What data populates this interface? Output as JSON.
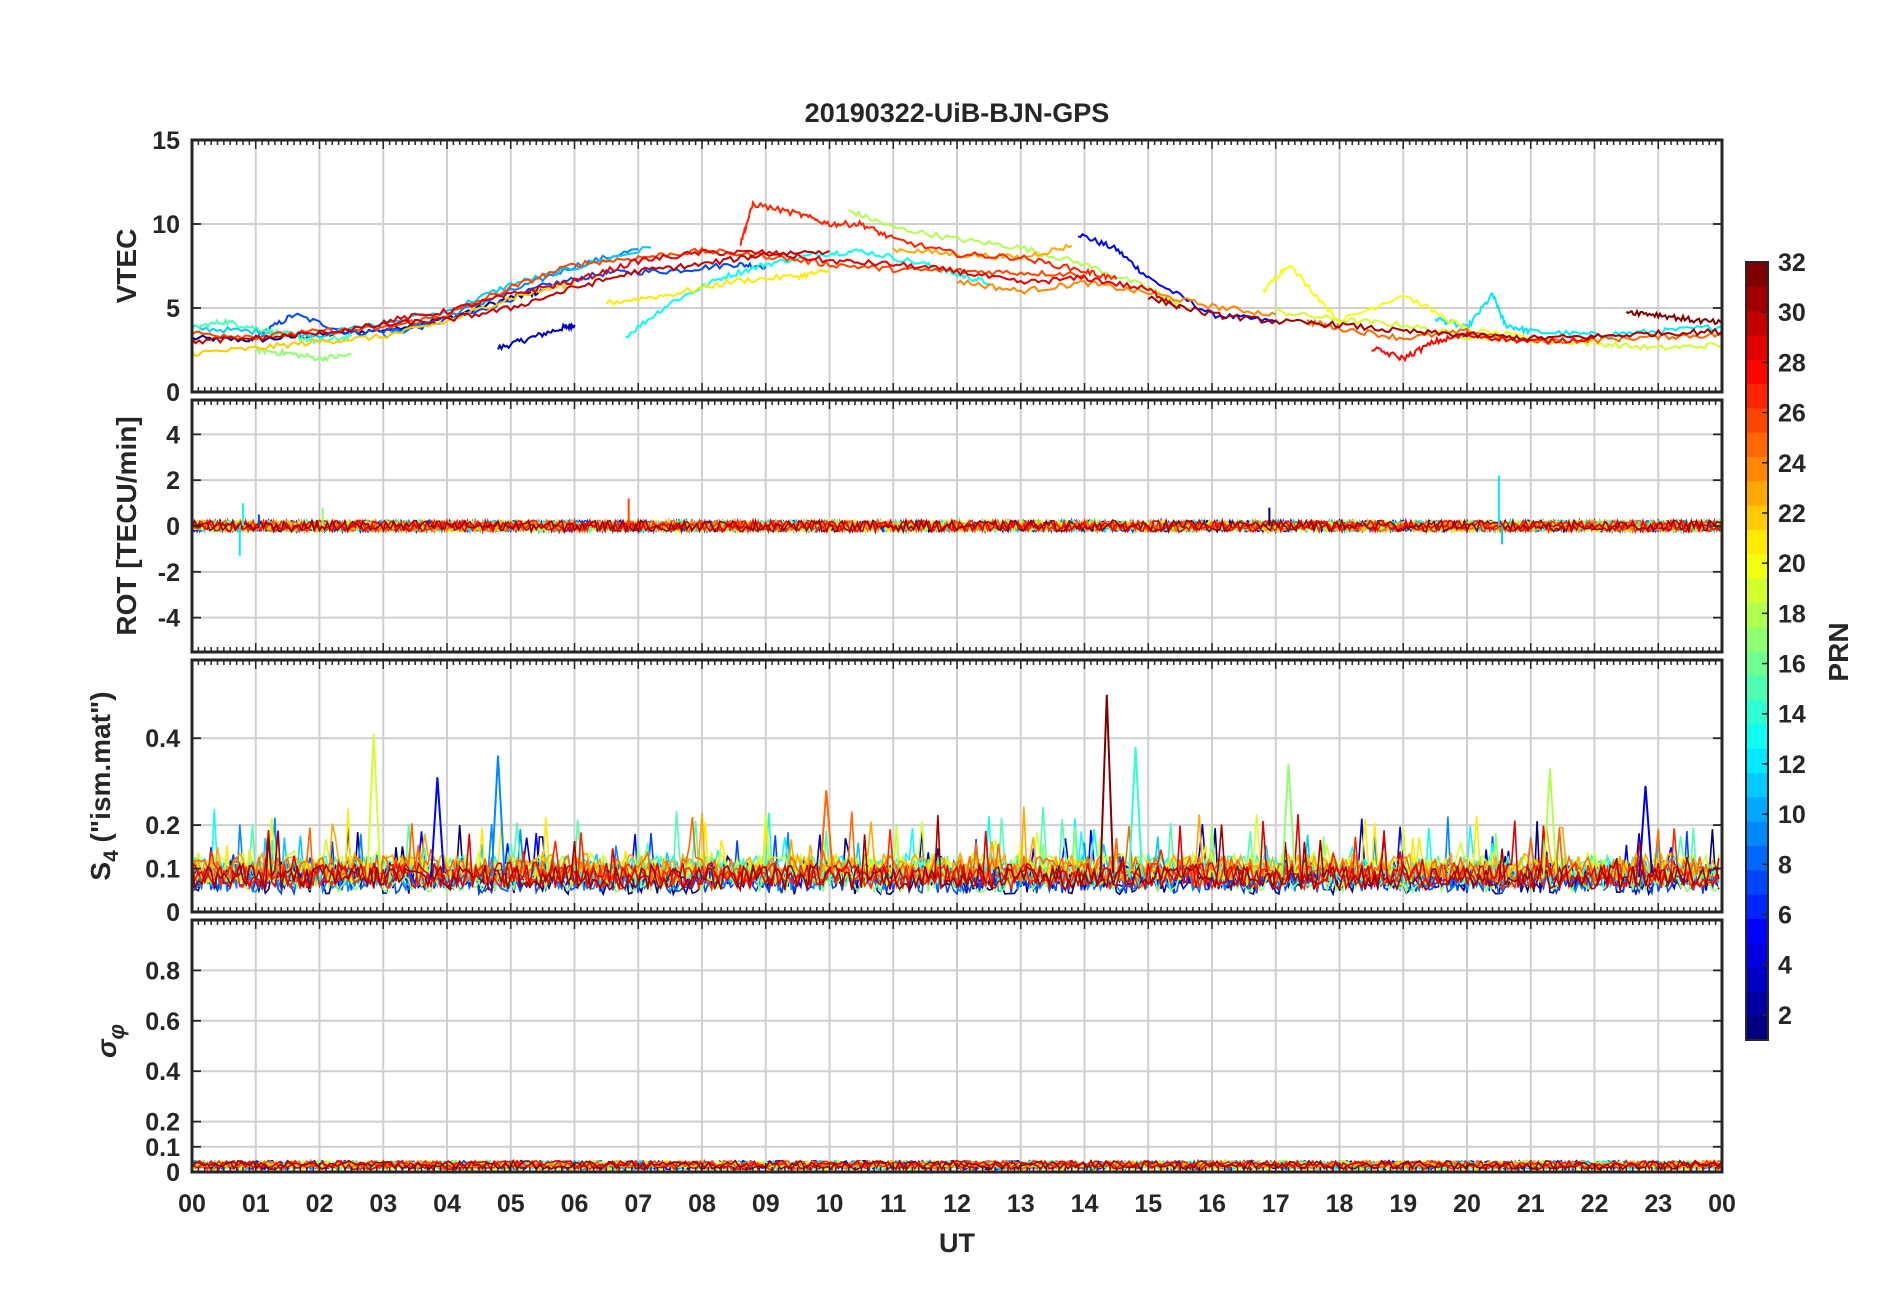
{
  "figure": {
    "title": "20190322-UiB-BJN-GPS",
    "xlabel": "UT",
    "x_tick_labels": [
      "00",
      "01",
      "02",
      "03",
      "04",
      "05",
      "06",
      "07",
      "08",
      "09",
      "10",
      "11",
      "12",
      "13",
      "14",
      "15",
      "16",
      "17",
      "18",
      "19",
      "20",
      "21",
      "22",
      "23",
      "00"
    ]
  },
  "colorbar": {
    "label": "PRN",
    "range": [
      1,
      32
    ],
    "tick_labels": [
      "2",
      "4",
      "6",
      "8",
      "10",
      "12",
      "14",
      "16",
      "18",
      "20",
      "22",
      "24",
      "26",
      "28",
      "30",
      "32"
    ],
    "colormap": "jet"
  },
  "chart_data": [
    {
      "type": "line",
      "panel": "vtec",
      "ylabel": "VTEC",
      "ylim": [
        0,
        15
      ],
      "yticks": [
        0,
        5,
        10,
        15
      ],
      "xlim": [
        0,
        24
      ],
      "grid": true,
      "series_note": "one line per GPS PRN, colored by PRN",
      "series": [
        {
          "prn": 1,
          "x": [
            0.0,
            1.0,
            2.0,
            3.0,
            4.0,
            5.0,
            5.5
          ],
          "y": [
            3.2,
            3.1,
            3.4,
            3.7,
            4.4,
            5.6,
            6.0
          ]
        },
        {
          "prn": 3,
          "x": [
            4.8,
            5.3,
            5.8,
            6.0
          ],
          "y": [
            2.6,
            3.2,
            3.8,
            4.0
          ]
        },
        {
          "prn": 5,
          "x": [
            13.9,
            14.5,
            15.0,
            16.0,
            17.0
          ],
          "y": [
            9.4,
            8.5,
            6.8,
            4.6,
            4.2
          ]
        },
        {
          "prn": 7,
          "x": [
            1.0,
            1.6,
            2.5,
            3.5,
            4.5,
            5.5,
            6.5,
            7.5,
            8.5,
            9.0
          ],
          "y": [
            3.3,
            4.6,
            3.5,
            3.8,
            4.8,
            6.3,
            7.1,
            7.2,
            7.6,
            7.5
          ]
        },
        {
          "prn": 9,
          "x": [
            3.0,
            4.0,
            5.0,
            6.0,
            7.0
          ],
          "y": [
            3.3,
            4.5,
            6.0,
            7.5,
            8.5
          ]
        },
        {
          "prn": 11,
          "x": [
            0.0,
            1.0,
            2.0,
            4.0,
            5.0,
            6.0,
            7.2
          ],
          "y": [
            3.8,
            3.6,
            3.4,
            4.8,
            6.4,
            7.4,
            8.6
          ]
        },
        {
          "prn": 12,
          "x": [
            19.5,
            20.0,
            20.4,
            20.6,
            21.0,
            22.0,
            23.0,
            24.0
          ],
          "y": [
            4.4,
            3.8,
            5.8,
            4.0,
            3.6,
            3.4,
            3.6,
            3.9
          ]
        },
        {
          "prn": 13,
          "x": [
            6.8,
            7.5,
            8.3,
            9.0,
            9.8,
            10.5,
            11.5,
            12.0,
            12.5
          ],
          "y": [
            3.3,
            5.3,
            6.8,
            7.6,
            8.2,
            8.4,
            7.6,
            7.0,
            6.5
          ]
        },
        {
          "prn": 15,
          "x": [
            0.0,
            0.5,
            1.0,
            1.5,
            2.0,
            2.5
          ],
          "y": [
            3.8,
            4.2,
            3.8,
            3.4,
            3.0,
            3.3
          ]
        },
        {
          "prn": 17,
          "x": [
            1.0,
            1.5,
            2.0,
            2.5
          ],
          "y": [
            2.5,
            2.3,
            2.0,
            2.2
          ]
        },
        {
          "prn": 18,
          "x": [
            10.3,
            11.0,
            12.0,
            13.0,
            14.0,
            15.0,
            15.5
          ],
          "y": [
            10.8,
            9.8,
            9.1,
            8.6,
            7.6,
            6.2,
            5.2
          ]
        },
        {
          "prn": 19,
          "x": [
            17.0,
            18.0,
            19.0,
            20.0,
            21.0,
            22.0,
            23.0,
            24.0
          ],
          "y": [
            4.8,
            4.3,
            4.0,
            3.3,
            3.1,
            2.9,
            2.6,
            2.8
          ]
        },
        {
          "prn": 20,
          "x": [
            16.8,
            17.2,
            18.0,
            19.0,
            20.0,
            21.0
          ],
          "y": [
            6.0,
            7.6,
            4.2,
            5.8,
            3.7,
            3.2
          ]
        },
        {
          "prn": 21,
          "x": [
            6.5,
            7.5,
            8.5,
            9.5,
            10.0
          ],
          "y": [
            5.3,
            5.8,
            6.6,
            6.9,
            7.2
          ]
        },
        {
          "prn": 22,
          "x": [
            0.0,
            1.0,
            2.0,
            3.0,
            4.0,
            5.0,
            6.0
          ],
          "y": [
            2.3,
            2.6,
            3.0,
            3.3,
            4.2,
            5.6,
            6.5
          ]
        },
        {
          "prn": 23,
          "x": [
            11.0,
            12.0,
            13.0,
            13.8
          ],
          "y": [
            8.5,
            8.2,
            8.0,
            8.7
          ]
        },
        {
          "prn": 24,
          "x": [
            12.0,
            13.0,
            14.0,
            15.0,
            16.0,
            17.0
          ],
          "y": [
            6.6,
            6.0,
            6.5,
            5.9,
            5.1,
            4.6
          ]
        },
        {
          "prn": 25,
          "x": [
            17.5,
            18.0,
            19.0,
            20.0,
            21.0,
            22.0,
            23.0,
            24.0
          ],
          "y": [
            4.2,
            3.8,
            3.2,
            3.6,
            3.0,
            3.1,
            3.3,
            3.4
          ]
        },
        {
          "prn": 26,
          "x": [
            0.0,
            1.0,
            2.0,
            3.0,
            4.0,
            5.0,
            6.0,
            7.0,
            8.0,
            9.0,
            10.0,
            11.0,
            12.0,
            13.0,
            14.0
          ],
          "y": [
            3.5,
            3.3,
            3.6,
            3.8,
            4.6,
            6.2,
            7.6,
            8.0,
            8.4,
            8.1,
            7.6,
            7.3,
            7.2,
            7.1,
            7.0
          ]
        },
        {
          "prn": 27,
          "x": [
            8.6,
            8.8,
            9.5,
            10.0,
            10.5,
            11.0,
            12.0,
            13.0,
            14.0,
            14.5
          ],
          "y": [
            8.8,
            11.2,
            10.6,
            10.0,
            10.0,
            9.1,
            8.2,
            8.0,
            7.2,
            6.7
          ]
        },
        {
          "prn": 28,
          "x": [
            18.5,
            19.0,
            19.5,
            20.0,
            21.0,
            22.0
          ],
          "y": [
            2.6,
            2.0,
            3.0,
            3.4,
            3.0,
            3.2
          ]
        },
        {
          "prn": 29,
          "x": [
            3.0,
            4.0,
            5.0,
            6.0,
            7.0,
            8.0,
            9.0,
            10.0,
            11.0,
            12.0,
            13.0,
            14.0,
            15.0,
            15.5
          ],
          "y": [
            4.2,
            4.8,
            5.8,
            6.6,
            7.8,
            8.3,
            8.3,
            7.8,
            7.6,
            7.2,
            6.5,
            6.8,
            6.1,
            5.0
          ]
        },
        {
          "prn": 30,
          "x": [
            0.0,
            1.0,
            2.0,
            3.0,
            4.0,
            5.0,
            6.0,
            7.0,
            8.0,
            9.0,
            10.0
          ],
          "y": [
            3.0,
            3.2,
            3.5,
            4.0,
            4.3,
            5.0,
            6.2,
            7.2,
            7.6,
            8.2,
            8.4
          ]
        },
        {
          "prn": 31,
          "x": [
            15.0,
            16.0,
            17.0,
            18.0,
            19.0,
            20.0,
            21.0,
            22.0,
            23.0,
            24.0
          ],
          "y": [
            5.6,
            4.6,
            4.2,
            4.0,
            3.6,
            3.4,
            3.2,
            3.3,
            3.5,
            3.6
          ]
        },
        {
          "prn": 32,
          "x": [
            22.5,
            23.0,
            23.5,
            24.0
          ],
          "y": [
            4.8,
            4.6,
            4.3,
            4.1
          ]
        }
      ]
    },
    {
      "type": "line",
      "panel": "rot",
      "ylabel": "ROT [TECU/min]",
      "ylim": [
        -5.5,
        5.5
      ],
      "yticks": [
        -4,
        -2,
        0,
        2,
        4
      ],
      "xlim": [
        0,
        24
      ],
      "grid": true,
      "series_note": "rate of TEC per PRN, hovering near 0 with small spikes",
      "spikes": [
        {
          "x": 0.75,
          "y": -1.3,
          "prn": 12
        },
        {
          "x": 0.8,
          "y": 1.0,
          "prn": 13
        },
        {
          "x": 1.05,
          "y": 0.5,
          "prn": 7
        },
        {
          "x": 2.05,
          "y": 0.8,
          "prn": 17
        },
        {
          "x": 6.85,
          "y": 1.2,
          "prn": 26
        },
        {
          "x": 16.9,
          "y": 0.8,
          "prn": 1
        },
        {
          "x": 20.5,
          "y": 2.2,
          "prn": 12
        },
        {
          "x": 20.55,
          "y": -0.8,
          "prn": 11
        }
      ]
    },
    {
      "type": "line",
      "panel": "s4",
      "ylabel": "S4 (\"ism.mat\")",
      "ylim": [
        0,
        0.58
      ],
      "yticks": [
        0,
        0.1,
        0.2,
        0.4
      ],
      "ytick_labels": [
        "0",
        "0.1",
        "0.2",
        "0.4"
      ],
      "xlim": [
        0,
        24
      ],
      "grid": true,
      "series_note": "amplitude scintillation index per PRN; baseline 0.03-0.12",
      "peaks": [
        {
          "x": 2.85,
          "y": 0.41,
          "prn": 19
        },
        {
          "x": 4.8,
          "y": 0.36,
          "prn": 9
        },
        {
          "x": 14.35,
          "y": 0.5,
          "prn": 32
        },
        {
          "x": 14.8,
          "y": 0.38,
          "prn": 14
        },
        {
          "x": 17.2,
          "y": 0.34,
          "prn": 17
        },
        {
          "x": 21.3,
          "y": 0.33,
          "prn": 18
        },
        {
          "x": 3.85,
          "y": 0.31,
          "prn": 5
        },
        {
          "x": 9.95,
          "y": 0.28,
          "prn": 25
        },
        {
          "x": 22.8,
          "y": 0.29,
          "prn": 4
        }
      ]
    },
    {
      "type": "line",
      "panel": "sigma_phi",
      "ylabel": "σφ",
      "ylim": [
        0,
        1.0
      ],
      "yticks": [
        0,
        0.1,
        0.2,
        0.4,
        0.6,
        0.8
      ],
      "ytick_labels": [
        "0",
        "0.1",
        "0.2",
        "0.4",
        "0.6",
        "0.8"
      ],
      "xlim": [
        0,
        24
      ],
      "grid": true,
      "series_note": "phase scintillation index per PRN; values mostly 0.01-0.05",
      "max_value": 0.07
    }
  ]
}
